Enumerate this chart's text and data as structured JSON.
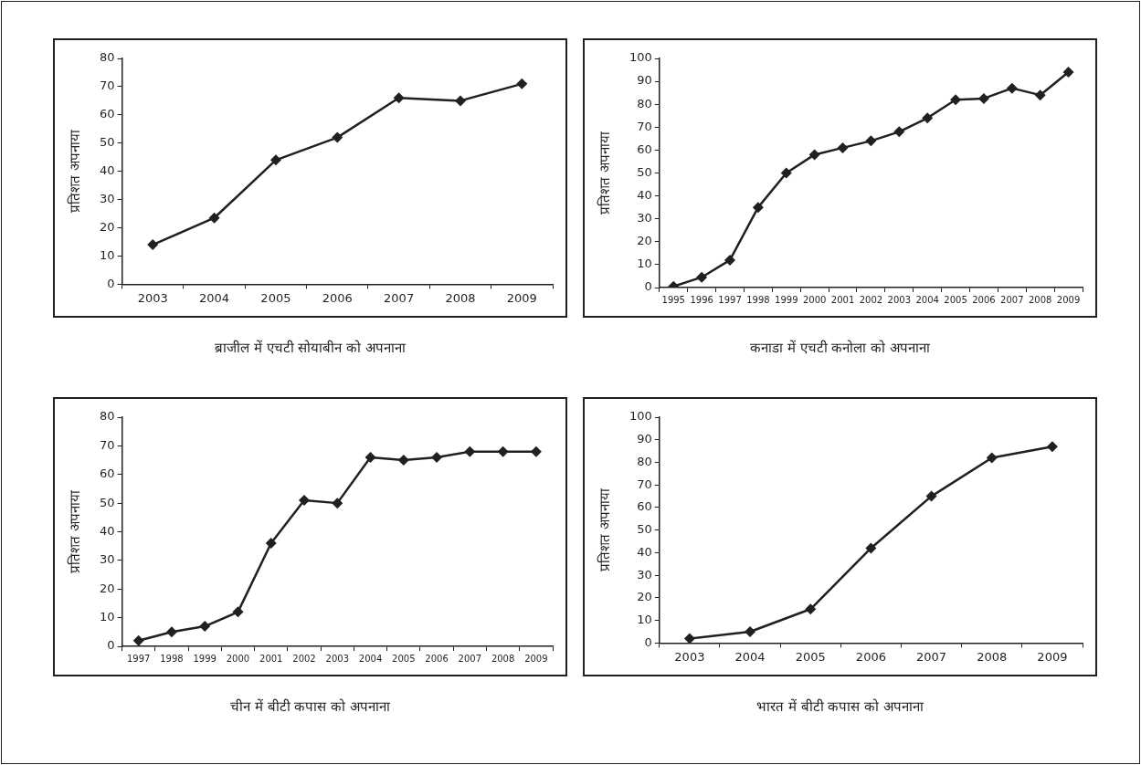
{
  "chart_data": [
    {
      "type": "line",
      "title": "ब्राजील में एचटी सोयाबीन को अपनाना",
      "ylabel": "प्रतिशत अपनाया",
      "categories": [
        "2003",
        "2004",
        "2005",
        "2006",
        "2007",
        "2008",
        "2009"
      ],
      "series": [
        {
          "color": "#231f20",
          "values": [
            14,
            23.5,
            44,
            52,
            66,
            65,
            71
          ]
        }
      ],
      "ylim": [
        0,
        80
      ],
      "yticks": [
        0,
        10,
        20,
        30,
        40,
        50,
        60,
        70,
        80
      ],
      "marker": "diamond"
    },
    {
      "type": "line",
      "title": "कनाडा में एचटी कनोला को अपनाना",
      "ylabel": "प्रतिशत अपनाया",
      "categories": [
        "1995",
        "1996",
        "1997",
        "1998",
        "1999",
        "2000",
        "2001",
        "2002",
        "2003",
        "2004",
        "2005",
        "2006",
        "2007",
        "2008",
        "2009"
      ],
      "series": [
        {
          "color": "#231f20",
          "values": [
            0.5,
            4.5,
            12,
            35,
            50,
            58,
            61,
            64,
            68,
            74,
            82,
            82.5,
            87,
            84,
            94
          ]
        }
      ],
      "ylim": [
        0,
        100
      ],
      "yticks": [
        0,
        10,
        20,
        30,
        40,
        50,
        60,
        70,
        80,
        90,
        100
      ],
      "marker": "diamond"
    },
    {
      "type": "line",
      "title": "चीन में बीटी कपास को अपनाना",
      "ylabel": "प्रतिशत अपनाया",
      "categories": [
        "1997",
        "1998",
        "1999",
        "2000",
        "2001",
        "2002",
        "2003",
        "2004",
        "2005",
        "2006",
        "2007",
        "2008",
        "2009"
      ],
      "series": [
        {
          "color": "#231f20",
          "values": [
            2,
            5,
            7,
            12,
            36,
            51,
            50,
            66,
            65,
            66,
            68,
            68,
            68
          ]
        }
      ],
      "ylim": [
        0,
        80
      ],
      "yticks": [
        0,
        10,
        20,
        30,
        40,
        50,
        60,
        70,
        80
      ],
      "marker": "diamond"
    },
    {
      "type": "line",
      "title": "भारत में बीटी कपास को अपनाना",
      "ylabel": "प्रतिशत अपनाया",
      "categories": [
        "2003",
        "2004",
        "2005",
        "2006",
        "2007",
        "2008",
        "2009"
      ],
      "series": [
        {
          "color": "#231f20",
          "values": [
            2,
            5,
            15,
            42,
            65,
            82,
            87
          ]
        }
      ],
      "ylim": [
        0,
        100
      ],
      "yticks": [
        0,
        10,
        20,
        30,
        40,
        50,
        60,
        70,
        80,
        90,
        100
      ],
      "marker": "diamond"
    }
  ]
}
